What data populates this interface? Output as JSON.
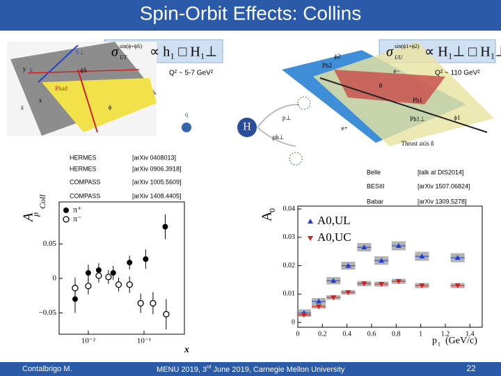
{
  "header": {
    "title": "Spin-Orbit Effects: Collins"
  },
  "formulas": [
    {
      "symbol": "σ",
      "sup": "sin(ϕ+ϕS)",
      "sub": "UT",
      "rest": "∝ h₁ □ H₁⊥"
    },
    {
      "symbol": "σ",
      "sup": "sin(ϕ1+ϕ2)",
      "sub": "UU",
      "rest": "∝ H₁⊥ □ H₁⊥"
    }
  ],
  "q2_labels": [
    "Q² ~ 5-7 GeV²",
    "Q² ~ 110 GeV²"
  ],
  "diagram_labels": {
    "left": [
      "S⊥",
      "k",
      "ϕS",
      "Phad",
      "ϕ",
      "y",
      "x",
      "z"
    ],
    "center": [
      "q",
      "H",
      "p⊥",
      "ph⊥"
    ],
    "right": [
      "ϕ2",
      "Ph2",
      "θ",
      "Ph1",
      "Ph1⊥",
      "ϕ1",
      "Thrust axis n̂",
      "e−",
      "e+"
    ]
  },
  "experiments_left": [
    {
      "name": "HERMES",
      "ref": "[arXiv 0408013]"
    },
    {
      "name": "HERMES",
      "ref": "[arXiv 0906.3918]"
    },
    {
      "name": "COMPASS",
      "ref": "[arXiv 1005.5609]"
    },
    {
      "name": "COMPASS",
      "ref": "[arXiv 1408.4405]"
    }
  ],
  "experiments_right": [
    {
      "name": "Belle",
      "ref": "[talk at DIS2014]"
    },
    {
      "name": "BESIII",
      "ref": "[arXiv 1507.06824]"
    },
    {
      "name": "Babar",
      "ref": "[arXiv 1309.5278]"
    }
  ],
  "charts": [
    {
      "type": "scatter",
      "ylabel": "A",
      "ylabel_sup": "p",
      "ylabel_sub": "Coll",
      "xlabel": "x",
      "xlog": true,
      "xlim": [
        0.003,
        0.53
      ],
      "ylim": [
        -0.081,
        0.111
      ],
      "xticks": [
        {
          "value": 0.01,
          "label": "10⁻²"
        },
        {
          "value": 0.1,
          "label": "10⁻¹"
        }
      ],
      "yticks": [
        0.05,
        0,
        {
          "value": -0.05,
          "label": "−0.05"
        }
      ],
      "legend": "top-left",
      "series": [
        {
          "name": "π⁺",
          "color": "#000000",
          "marker": "circle-filled",
          "x": [
            0.0058,
            0.01,
            0.0154,
            0.028,
            0.055,
            0.107,
            0.24
          ],
          "values": [
            -0.03,
            0.008,
            0.012,
            0.008,
            0.023,
            0.028,
            0.075
          ],
          "errors": [
            0.02,
            0.012,
            0.01,
            0.01,
            0.01,
            0.014,
            0.018
          ]
        },
        {
          "name": "π⁻",
          "color": "#000000",
          "marker": "circle-open",
          "x": [
            0.0058,
            0.01,
            0.0154,
            0.023,
            0.035,
            0.055,
            0.087,
            0.145,
            0.25
          ],
          "values": [
            -0.014,
            -0.011,
            0.004,
            0.002,
            -0.009,
            -0.009,
            -0.036,
            -0.036,
            -0.052
          ],
          "errors": [
            0.015,
            0.012,
            0.01,
            0.01,
            0.01,
            0.012,
            0.014,
            0.016,
            0.022
          ]
        }
      ]
    },
    {
      "type": "scatter",
      "ylabel": "A",
      "ylabel_sub": "0",
      "xlabel": "p",
      "xlabel_sub": "t",
      "xlabel_unit": "(GeV/c)",
      "xlog": false,
      "xlim": [
        0,
        1.5
      ],
      "ylim": [
        -0.0017,
        0.041
      ],
      "xticks": [
        0,
        0.2,
        0.4,
        0.6,
        0.8,
        1,
        1.2,
        1.4
      ],
      "yticks": [
        0,
        0.01,
        0.02,
        0.03,
        0.04
      ],
      "legend": "top-left",
      "series": [
        {
          "name": "A0,UL",
          "color": "#1f3fd0",
          "marker": "triangle-up",
          "x": [
            0.05,
            0.17,
            0.29,
            0.41,
            0.54,
            0.68,
            0.82,
            1.01,
            1.3
          ],
          "values": [
            0.0034,
            0.0074,
            0.0147,
            0.02,
            0.0265,
            0.0218,
            0.027,
            0.0233,
            0.0228
          ],
          "errors": [
            0.0012,
            0.0012,
            0.0013,
            0.0014,
            0.0015,
            0.0015,
            0.0016,
            0.0016,
            0.0016
          ]
        },
        {
          "name": "A0,UC",
          "color": "#d01f1f",
          "marker": "triangle-down",
          "x": [
            0.05,
            0.17,
            0.29,
            0.41,
            0.54,
            0.68,
            0.82,
            1.01,
            1.3
          ],
          "values": [
            0.0027,
            0.0056,
            0.0088,
            0.0106,
            0.0137,
            0.0135,
            0.0145,
            0.013,
            0.013
          ],
          "errors": [
            0.0007,
            0.0007,
            0.0008,
            0.0008,
            0.0009,
            0.0009,
            0.0009,
            0.0009,
            0.0009
          ]
        }
      ]
    }
  ],
  "footer": {
    "author": "Contalbrigo M.",
    "event_pre": "MENU 2019, 3",
    "event_sup": "rd",
    "event_post": " June 2019, Carnegie Mellon University",
    "page": "22"
  }
}
